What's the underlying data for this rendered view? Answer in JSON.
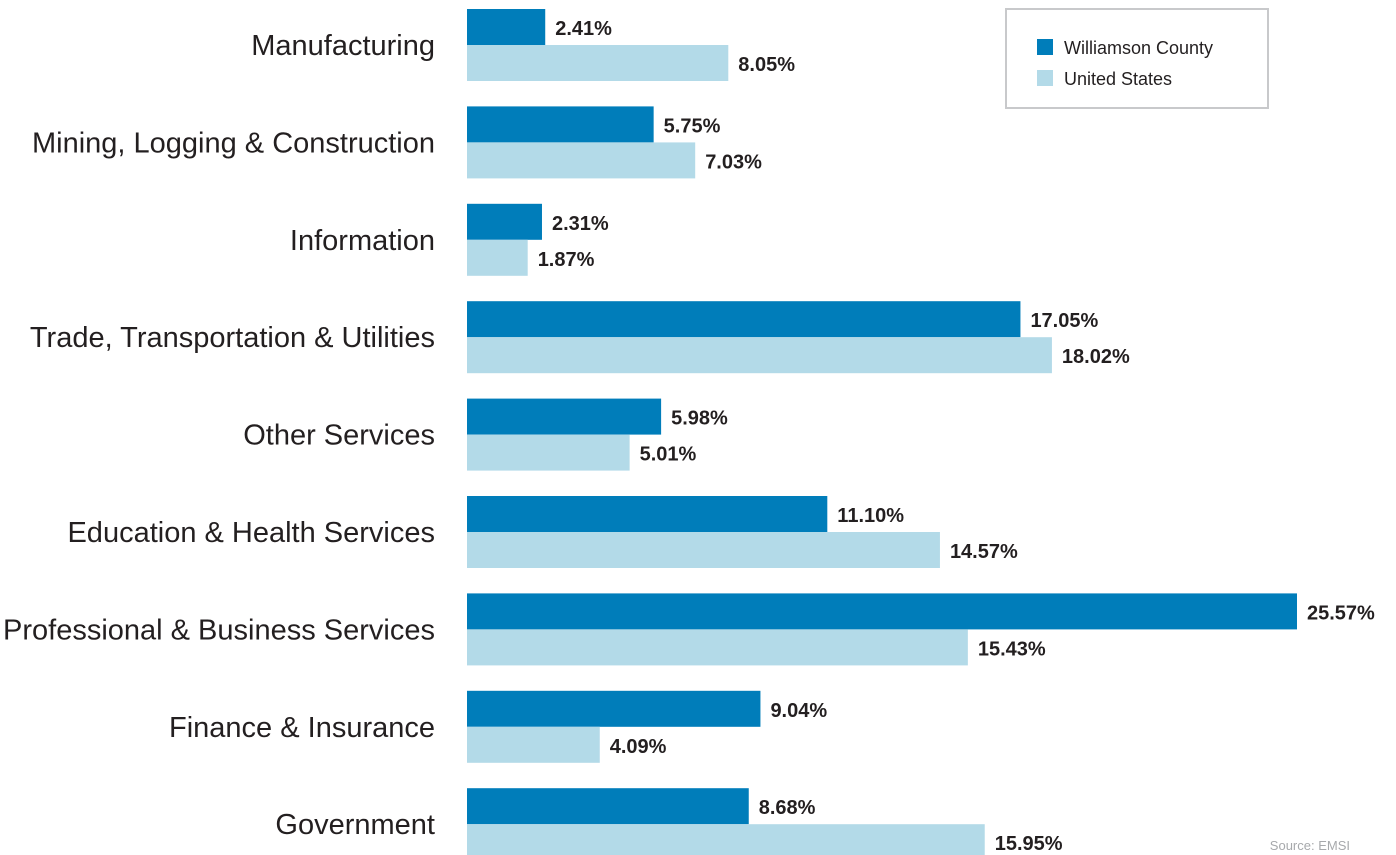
{
  "chart_data": {
    "type": "bar",
    "orientation": "horizontal",
    "categories": [
      "Manufacturing",
      "Mining, Logging & Construction",
      "Information",
      "Trade, Transportation & Utilities",
      "Other Services",
      "Education & Health Services",
      "Professional & Business Services",
      "Finance & Insurance",
      "Government"
    ],
    "series": [
      {
        "name": "Williamson County",
        "color": "#007dba",
        "values": [
          2.41,
          5.75,
          2.31,
          17.05,
          5.98,
          11.1,
          25.57,
          9.04,
          8.68
        ],
        "labels": [
          "2.41%",
          "5.75%",
          "2.31%",
          "17.05%",
          "5.98%",
          "11.10%",
          "25.57%",
          "9.04%",
          "8.68%"
        ]
      },
      {
        "name": "United States",
        "color": "#b3dae8",
        "values": [
          8.05,
          7.03,
          1.87,
          18.02,
          5.01,
          14.57,
          15.43,
          4.09,
          15.95
        ],
        "labels": [
          "8.05%",
          "7.03%",
          "1.87%",
          "18.02%",
          "5.01%",
          "14.57%",
          "15.43%",
          "4.09%",
          "15.95%"
        ]
      }
    ],
    "legend_position": "top-right",
    "grid": false,
    "xlim": [
      0,
      25.57
    ],
    "source": "Source: EMSI"
  }
}
